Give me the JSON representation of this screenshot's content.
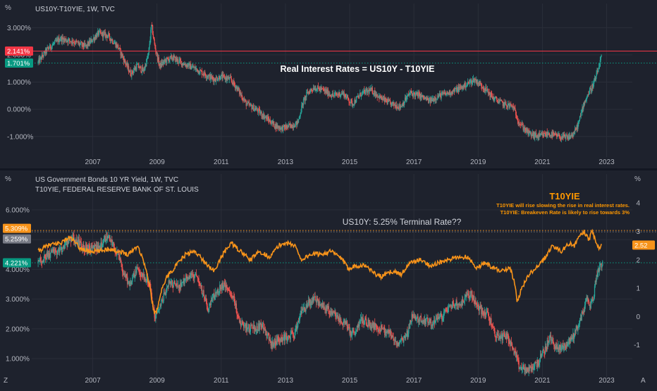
{
  "colors": {
    "background": "#1e222d",
    "grid": "#2a2e39",
    "separator": "#131722",
    "text": "#b2b5be",
    "candle_up": "#26a69a",
    "candle_down": "#ef5350",
    "t10yie_line": "#f7931a",
    "red_line": "#f23645",
    "green_line": "#089981",
    "annotation_orange": "#ff9800",
    "white": "#ffffff"
  },
  "chart_data": [
    {
      "type": "candlestick",
      "title": "US10Y-T10YIE, 1W, TVC",
      "unit_label": "%",
      "annotation": "Real Interest Rates = US10Y - T10YIE",
      "ylim": [
        -1.55,
        3.5
      ],
      "y_ticks": [
        "3.000%",
        "2.000%",
        "1.000%",
        "0.000%",
        "-1.000%"
      ],
      "y_tick_values": [
        3,
        2,
        1,
        0,
        -1
      ],
      "x_ticks": [
        "2007",
        "2009",
        "2011",
        "2013",
        "2015",
        "2017",
        "2019",
        "2021",
        "2023"
      ],
      "x_tick_years": [
        2007,
        2009,
        2011,
        2013,
        2015,
        2017,
        2019,
        2021,
        2023
      ],
      "xlim_years": [
        2005.1,
        2023.8
      ],
      "price_labels": [
        {
          "text": "2.141%",
          "value": 2.141,
          "color": "#f23645"
        },
        {
          "text": "1.701%",
          "value": 1.701,
          "color": "#089981"
        }
      ],
      "series": [
        {
          "name": "US10Y-T10YIE",
          "points": [
            [
              2005.3,
              1.7
            ],
            [
              2005.6,
              2.2
            ],
            [
              2006.0,
              2.6
            ],
            [
              2006.4,
              2.5
            ],
            [
              2006.8,
              2.3
            ],
            [
              2007.2,
              2.8
            ],
            [
              2007.5,
              2.7
            ],
            [
              2007.8,
              2.3
            ],
            [
              2008.0,
              1.8
            ],
            [
              2008.2,
              1.3
            ],
            [
              2008.4,
              1.6
            ],
            [
              2008.6,
              1.4
            ],
            [
              2008.75,
              2.0
            ],
            [
              2008.85,
              3.1
            ],
            [
              2008.95,
              2.3
            ],
            [
              2009.1,
              1.6
            ],
            [
              2009.3,
              1.8
            ],
            [
              2009.5,
              1.9
            ],
            [
              2009.8,
              1.7
            ],
            [
              2010.2,
              1.5
            ],
            [
              2010.5,
              1.3
            ],
            [
              2010.8,
              1.1
            ],
            [
              2011.0,
              1.2
            ],
            [
              2011.3,
              1.1
            ],
            [
              2011.5,
              0.8
            ],
            [
              2011.8,
              0.2
            ],
            [
              2012.1,
              0.0
            ],
            [
              2012.4,
              -0.3
            ],
            [
              2012.7,
              -0.6
            ],
            [
              2012.9,
              -0.7
            ],
            [
              2013.2,
              -0.6
            ],
            [
              2013.4,
              -0.5
            ],
            [
              2013.55,
              0.2
            ],
            [
              2013.7,
              0.6
            ],
            [
              2013.9,
              0.8
            ],
            [
              2014.2,
              0.7
            ],
            [
              2014.5,
              0.5
            ],
            [
              2014.8,
              0.6
            ],
            [
              2015.1,
              0.2
            ],
            [
              2015.4,
              0.6
            ],
            [
              2015.7,
              0.7
            ],
            [
              2016.0,
              0.4
            ],
            [
              2016.3,
              0.2
            ],
            [
              2016.6,
              0.1
            ],
            [
              2016.9,
              0.6
            ],
            [
              2017.2,
              0.5
            ],
            [
              2017.5,
              0.3
            ],
            [
              2017.8,
              0.5
            ],
            [
              2018.1,
              0.6
            ],
            [
              2018.5,
              0.8
            ],
            [
              2018.9,
              1.1
            ],
            [
              2019.2,
              0.8
            ],
            [
              2019.5,
              0.4
            ],
            [
              2019.8,
              0.2
            ],
            [
              2020.1,
              0.1
            ],
            [
              2020.3,
              -0.5
            ],
            [
              2020.6,
              -0.9
            ],
            [
              2020.9,
              -1.0
            ],
            [
              2021.2,
              -0.9
            ],
            [
              2021.5,
              -1.0
            ],
            [
              2021.8,
              -1.05
            ],
            [
              2022.0,
              -0.9
            ],
            [
              2022.15,
              -0.5
            ],
            [
              2022.3,
              0.2
            ],
            [
              2022.5,
              0.7
            ],
            [
              2022.6,
              0.9
            ],
            [
              2022.72,
              1.3
            ],
            [
              2022.85,
              1.9
            ]
          ]
        }
      ]
    },
    {
      "type": "candlestick_with_line",
      "title": "US Government Bonds 10 YR Yield, 1W, TVC",
      "subtitle": "T10YIE, FEDERAL RESERVE BANK OF ST. LOUIS",
      "left_unit_label": "%",
      "right_unit_label": "%",
      "annotation": "US10Y: 5.25% Terminal Rate??",
      "ylim_left": [
        0.55,
        6.85
      ],
      "y_ticks_left": [
        "6.000%",
        "5.000%",
        "4.000%",
        "3.000%",
        "2.000%",
        "1.000%"
      ],
      "y_tick_values_left": [
        6,
        5,
        4,
        3,
        2,
        1
      ],
      "ylim_right": [
        -1.95,
        4.65
      ],
      "y_ticks_right": [
        "4",
        "3",
        "2",
        "1",
        "0",
        "-1"
      ],
      "y_tick_values_right": [
        4,
        3,
        2,
        1,
        0,
        -1
      ],
      "x_ticks": [
        "2007",
        "2009",
        "2011",
        "2013",
        "2015",
        "2017",
        "2019",
        "2021",
        "2023"
      ],
      "x_tick_years": [
        2007,
        2009,
        2011,
        2013,
        2015,
        2017,
        2019,
        2021,
        2023
      ],
      "xlim_years": [
        2005.1,
        2023.8
      ],
      "price_labels": [
        {
          "text": "5.309%",
          "value": 5.309,
          "color": "#f7931a"
        },
        {
          "text": "5.259%",
          "value": 5.259,
          "color": "#787b86"
        },
        {
          "text": "4.221%",
          "value": 4.221,
          "color": "#089981"
        }
      ],
      "right_price_label": {
        "text": "2.52",
        "value": 2.52,
        "color": "#f7931a"
      },
      "t10yie_box": {
        "title": "T10YIE",
        "line1": "T10YIE will rise slowing the rise in real interest rates.",
        "line2": "T10YIE: Breakeven Rate is likely to rise towards 3%"
      },
      "series": [
        {
          "name": "US Government Bonds 10 YR Yield",
          "axis": "left",
          "points": [
            [
              2005.3,
              4.2
            ],
            [
              2005.6,
              4.5
            ],
            [
              2006.0,
              4.6
            ],
            [
              2006.4,
              5.1
            ],
            [
              2006.8,
              4.7
            ],
            [
              2007.2,
              4.7
            ],
            [
              2007.5,
              5.2
            ],
            [
              2007.8,
              4.5
            ],
            [
              2008.0,
              3.8
            ],
            [
              2008.2,
              3.5
            ],
            [
              2008.4,
              4.0
            ],
            [
              2008.6,
              3.8
            ],
            [
              2008.8,
              3.5
            ],
            [
              2008.95,
              2.3
            ],
            [
              2009.1,
              2.7
            ],
            [
              2009.4,
              3.6
            ],
            [
              2009.7,
              3.4
            ],
            [
              2010.0,
              3.8
            ],
            [
              2010.3,
              3.7
            ],
            [
              2010.6,
              2.7
            ],
            [
              2010.9,
              3.3
            ],
            [
              2011.1,
              3.5
            ],
            [
              2011.4,
              3.0
            ],
            [
              2011.6,
              2.2
            ],
            [
              2011.9,
              2.0
            ],
            [
              2012.3,
              2.1
            ],
            [
              2012.6,
              1.5
            ],
            [
              2012.9,
              1.7
            ],
            [
              2013.3,
              1.8
            ],
            [
              2013.5,
              2.5
            ],
            [
              2013.7,
              2.8
            ],
            [
              2013.95,
              3.0
            ],
            [
              2014.3,
              2.7
            ],
            [
              2014.6,
              2.4
            ],
            [
              2014.9,
              2.2
            ],
            [
              2015.1,
              1.8
            ],
            [
              2015.4,
              2.3
            ],
            [
              2015.7,
              2.1
            ],
            [
              2016.0,
              2.0
            ],
            [
              2016.3,
              1.8
            ],
            [
              2016.5,
              1.4
            ],
            [
              2016.8,
              1.8
            ],
            [
              2016.95,
              2.4
            ],
            [
              2017.3,
              2.3
            ],
            [
              2017.6,
              2.2
            ],
            [
              2017.9,
              2.4
            ],
            [
              2018.2,
              2.8
            ],
            [
              2018.5,
              2.9
            ],
            [
              2018.8,
              3.2
            ],
            [
              2019.0,
              2.7
            ],
            [
              2019.3,
              2.5
            ],
            [
              2019.6,
              1.7
            ],
            [
              2019.9,
              1.8
            ],
            [
              2020.15,
              1.2
            ],
            [
              2020.3,
              0.7
            ],
            [
              2020.6,
              0.6
            ],
            [
              2020.9,
              0.9
            ],
            [
              2021.1,
              1.3
            ],
            [
              2021.25,
              1.7
            ],
            [
              2021.5,
              1.3
            ],
            [
              2021.8,
              1.5
            ],
            [
              2022.0,
              1.8
            ],
            [
              2022.2,
              2.3
            ],
            [
              2022.4,
              3.0
            ],
            [
              2022.5,
              2.8
            ],
            [
              2022.6,
              3.0
            ],
            [
              2022.7,
              3.8
            ],
            [
              2022.8,
              4.1
            ],
            [
              2022.88,
              4.22
            ]
          ]
        },
        {
          "name": "T10YIE",
          "axis": "right",
          "points": [
            [
              2005.3,
              2.3
            ],
            [
              2005.6,
              2.5
            ],
            [
              2006.0,
              2.6
            ],
            [
              2006.3,
              2.8
            ],
            [
              2006.6,
              2.4
            ],
            [
              2006.9,
              2.3
            ],
            [
              2007.2,
              2.3
            ],
            [
              2007.5,
              2.4
            ],
            [
              2007.8,
              2.3
            ],
            [
              2008.1,
              2.2
            ],
            [
              2008.4,
              2.5
            ],
            [
              2008.6,
              1.9
            ],
            [
              2008.75,
              1.2
            ],
            [
              2008.9,
              0.2
            ],
            [
              2008.98,
              0.1
            ],
            [
              2009.1,
              0.8
            ],
            [
              2009.3,
              1.4
            ],
            [
              2009.6,
              1.8
            ],
            [
              2009.9,
              2.2
            ],
            [
              2010.2,
              2.3
            ],
            [
              2010.5,
              1.9
            ],
            [
              2010.8,
              1.6
            ],
            [
              2011.0,
              2.1
            ],
            [
              2011.3,
              2.6
            ],
            [
              2011.6,
              2.3
            ],
            [
              2011.9,
              2.0
            ],
            [
              2012.2,
              2.3
            ],
            [
              2012.5,
              2.1
            ],
            [
              2012.8,
              2.5
            ],
            [
              2013.0,
              2.6
            ],
            [
              2013.3,
              2.5
            ],
            [
              2013.5,
              2.0
            ],
            [
              2013.8,
              2.2
            ],
            [
              2014.1,
              2.2
            ],
            [
              2014.4,
              2.3
            ],
            [
              2014.7,
              2.1
            ],
            [
              2014.95,
              1.7
            ],
            [
              2015.2,
              1.8
            ],
            [
              2015.5,
              1.8
            ],
            [
              2015.8,
              1.5
            ],
            [
              2016.0,
              1.4
            ],
            [
              2016.3,
              1.6
            ],
            [
              2016.6,
              1.5
            ],
            [
              2016.9,
              1.9
            ],
            [
              2017.2,
              2.0
            ],
            [
              2017.5,
              1.8
            ],
            [
              2017.8,
              1.9
            ],
            [
              2018.1,
              2.0
            ],
            [
              2018.4,
              2.1
            ],
            [
              2018.7,
              2.1
            ],
            [
              2018.95,
              1.7
            ],
            [
              2019.2,
              1.9
            ],
            [
              2019.5,
              1.7
            ],
            [
              2019.8,
              1.6
            ],
            [
              2020.0,
              1.7
            ],
            [
              2020.15,
              1.1
            ],
            [
              2020.22,
              0.5
            ],
            [
              2020.35,
              1.0
            ],
            [
              2020.6,
              1.5
            ],
            [
              2020.9,
              1.8
            ],
            [
              2021.1,
              2.1
            ],
            [
              2021.3,
              2.5
            ],
            [
              2021.6,
              2.3
            ],
            [
              2021.85,
              2.6
            ],
            [
              2022.0,
              2.5
            ],
            [
              2022.15,
              2.8
            ],
            [
              2022.3,
              3.0
            ],
            [
              2022.45,
              2.7
            ],
            [
              2022.55,
              3.0
            ],
            [
              2022.65,
              2.7
            ],
            [
              2022.75,
              2.4
            ],
            [
              2022.85,
              2.5
            ]
          ]
        }
      ]
    }
  ]
}
